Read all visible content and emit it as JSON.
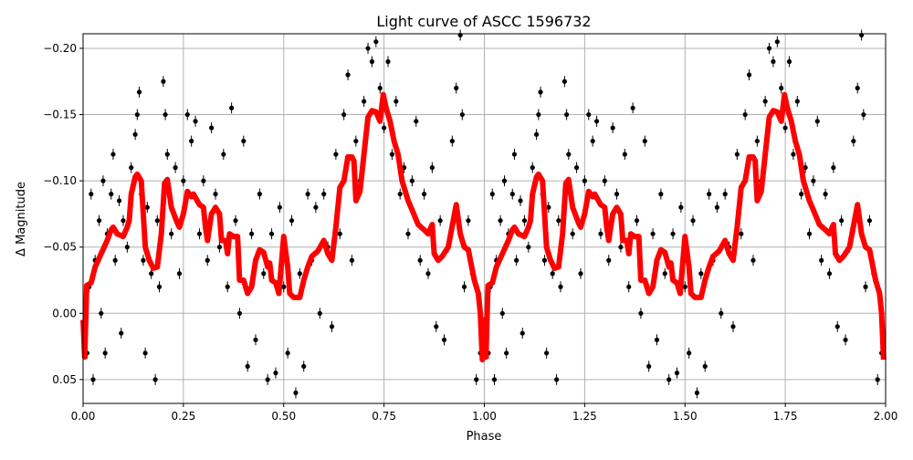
{
  "chart_data": {
    "type": "scatter",
    "title": "Light curve of ASCC 1596732",
    "xlabel": "Phase",
    "ylabel": "Δ Magnitude",
    "xlim": [
      0,
      2
    ],
    "ylim": [
      0.068,
      -0.211
    ],
    "y_inverted": true,
    "grid": true,
    "x_ticks": [
      "0.00",
      "0.25",
      "0.50",
      "0.75",
      "1.00",
      "1.25",
      "1.50",
      "1.75",
      "2.00"
    ],
    "y_ticks": [
      "−0.20",
      "−0.15",
      "−0.10",
      "−0.05",
      "0.00",
      "0.05"
    ],
    "colors": {
      "observations": "#000000",
      "model": "#ff0000",
      "grid": "#b0b0b0"
    },
    "period_folded": true,
    "observations": [
      [
        0.01,
        0.03
      ],
      [
        0.015,
        -0.02
      ],
      [
        0.02,
        -0.09
      ],
      [
        0.025,
        0.05
      ],
      [
        0.03,
        -0.04
      ],
      [
        0.04,
        -0.07
      ],
      [
        0.045,
        0.0
      ],
      [
        0.05,
        -0.1
      ],
      [
        0.055,
        0.03
      ],
      [
        0.06,
        -0.06
      ],
      [
        0.07,
        -0.09
      ],
      [
        0.075,
        -0.12
      ],
      [
        0.08,
        -0.04
      ],
      [
        0.09,
        -0.085
      ],
      [
        0.095,
        0.015
      ],
      [
        0.1,
        -0.07
      ],
      [
        0.11,
        -0.05
      ],
      [
        0.12,
        -0.11
      ],
      [
        0.13,
        -0.135
      ],
      [
        0.135,
        -0.15
      ],
      [
        0.14,
        -0.167
      ],
      [
        0.145,
        -0.09
      ],
      [
        0.15,
        -0.04
      ],
      [
        0.155,
        0.03
      ],
      [
        0.16,
        -0.08
      ],
      [
        0.17,
        -0.03
      ],
      [
        0.18,
        0.05
      ],
      [
        0.185,
        -0.07
      ],
      [
        0.19,
        -0.02
      ],
      [
        0.2,
        -0.175
      ],
      [
        0.205,
        -0.15
      ],
      [
        0.21,
        -0.12
      ],
      [
        0.22,
        -0.06
      ],
      [
        0.23,
        -0.11
      ],
      [
        0.24,
        -0.03
      ],
      [
        0.25,
        -0.1
      ],
      [
        0.26,
        -0.15
      ],
      [
        0.27,
        -0.13
      ],
      [
        0.28,
        -0.145
      ],
      [
        0.29,
        -0.06
      ],
      [
        0.3,
        -0.1
      ],
      [
        0.31,
        -0.04
      ],
      [
        0.32,
        -0.14
      ],
      [
        0.33,
        -0.09
      ],
      [
        0.34,
        -0.05
      ],
      [
        0.35,
        -0.12
      ],
      [
        0.36,
        -0.02
      ],
      [
        0.37,
        -0.155
      ],
      [
        0.38,
        -0.07
      ],
      [
        0.39,
        0.0
      ],
      [
        0.4,
        -0.13
      ],
      [
        0.41,
        0.04
      ],
      [
        0.42,
        -0.06
      ],
      [
        0.43,
        0.02
      ],
      [
        0.44,
        -0.09
      ],
      [
        0.45,
        -0.03
      ],
      [
        0.46,
        0.05
      ],
      [
        0.47,
        -0.06
      ],
      [
        0.48,
        0.045
      ],
      [
        0.49,
        -0.08
      ],
      [
        0.5,
        -0.02
      ],
      [
        0.51,
        0.03
      ],
      [
        0.52,
        -0.07
      ],
      [
        0.53,
        0.06
      ],
      [
        0.54,
        -0.03
      ],
      [
        0.55,
        0.04
      ],
      [
        0.56,
        -0.09
      ],
      [
        0.57,
        -0.04
      ],
      [
        0.58,
        -0.08
      ],
      [
        0.59,
        0.0
      ],
      [
        0.6,
        -0.09
      ],
      [
        0.61,
        -0.05
      ],
      [
        0.62,
        0.01
      ],
      [
        0.63,
        -0.12
      ],
      [
        0.64,
        -0.06
      ],
      [
        0.65,
        -0.15
      ],
      [
        0.66,
        -0.18
      ],
      [
        0.67,
        -0.04
      ],
      [
        0.68,
        -0.13
      ],
      [
        0.69,
        -0.1
      ],
      [
        0.7,
        -0.16
      ],
      [
        0.71,
        -0.2
      ],
      [
        0.72,
        -0.19
      ],
      [
        0.73,
        -0.205
      ],
      [
        0.74,
        -0.17
      ],
      [
        0.75,
        -0.14
      ],
      [
        0.76,
        -0.19
      ],
      [
        0.77,
        -0.12
      ],
      [
        0.78,
        -0.16
      ],
      [
        0.79,
        -0.09
      ],
      [
        0.8,
        -0.11
      ],
      [
        0.81,
        -0.06
      ],
      [
        0.82,
        -0.1
      ],
      [
        0.83,
        -0.145
      ],
      [
        0.84,
        -0.04
      ],
      [
        0.85,
        -0.09
      ],
      [
        0.86,
        -0.03
      ],
      [
        0.87,
        -0.11
      ],
      [
        0.88,
        0.01
      ],
      [
        0.89,
        -0.07
      ],
      [
        0.9,
        0.02
      ],
      [
        0.91,
        -0.05
      ],
      [
        0.92,
        -0.13
      ],
      [
        0.93,
        -0.17
      ],
      [
        0.94,
        -0.21
      ],
      [
        0.945,
        -0.15
      ],
      [
        0.95,
        -0.02
      ],
      [
        0.96,
        -0.07
      ],
      [
        0.97,
        -0.03
      ],
      [
        0.98,
        0.05
      ],
      [
        0.99,
        0.03
      ]
    ],
    "model": [
      [
        0.0,
        0.005
      ],
      [
        0.004,
        0.033
      ],
      [
        0.009,
        -0.021
      ],
      [
        0.02,
        -0.023
      ],
      [
        0.03,
        -0.035
      ],
      [
        0.045,
        -0.045
      ],
      [
        0.06,
        -0.055
      ],
      [
        0.07,
        -0.063
      ],
      [
        0.075,
        -0.065
      ],
      [
        0.085,
        -0.06
      ],
      [
        0.1,
        -0.058
      ],
      [
        0.11,
        -0.065
      ],
      [
        0.115,
        -0.07
      ],
      [
        0.12,
        -0.09
      ],
      [
        0.13,
        -0.103
      ],
      [
        0.135,
        -0.105
      ],
      [
        0.145,
        -0.1
      ],
      [
        0.155,
        -0.05
      ],
      [
        0.165,
        -0.04
      ],
      [
        0.175,
        -0.034
      ],
      [
        0.185,
        -0.035
      ],
      [
        0.195,
        -0.06
      ],
      [
        0.203,
        -0.098
      ],
      [
        0.21,
        -0.101
      ],
      [
        0.22,
        -0.08
      ],
      [
        0.235,
        -0.068
      ],
      [
        0.24,
        -0.065
      ],
      [
        0.25,
        -0.075
      ],
      [
        0.26,
        -0.092
      ],
      [
        0.27,
        -0.088
      ],
      [
        0.275,
        -0.09
      ],
      [
        0.29,
        -0.082
      ],
      [
        0.3,
        -0.08
      ],
      [
        0.305,
        -0.065
      ],
      [
        0.31,
        -0.055
      ],
      [
        0.32,
        -0.075
      ],
      [
        0.33,
        -0.08
      ],
      [
        0.34,
        -0.075
      ],
      [
        0.345,
        -0.055
      ],
      [
        0.355,
        -0.055
      ],
      [
        0.36,
        -0.045
      ],
      [
        0.365,
        -0.06
      ],
      [
        0.375,
        -0.058
      ],
      [
        0.385,
        -0.058
      ],
      [
        0.39,
        -0.025
      ],
      [
        0.4,
        -0.025
      ],
      [
        0.41,
        -0.015
      ],
      [
        0.42,
        -0.02
      ],
      [
        0.43,
        -0.04
      ],
      [
        0.44,
        -0.048
      ],
      [
        0.45,
        -0.046
      ],
      [
        0.46,
        -0.035
      ],
      [
        0.465,
        -0.038
      ],
      [
        0.47,
        -0.025
      ],
      [
        0.48,
        -0.023
      ],
      [
        0.488,
        -0.015
      ],
      [
        0.5,
        -0.058
      ],
      [
        0.51,
        -0.035
      ],
      [
        0.515,
        -0.015
      ],
      [
        0.525,
        -0.012
      ],
      [
        0.54,
        -0.012
      ],
      [
        0.55,
        -0.025
      ],
      [
        0.56,
        -0.035
      ],
      [
        0.57,
        -0.043
      ],
      [
        0.585,
        -0.047
      ],
      [
        0.6,
        -0.055
      ],
      [
        0.61,
        -0.045
      ],
      [
        0.62,
        -0.04
      ],
      [
        0.63,
        -0.065
      ],
      [
        0.64,
        -0.095
      ],
      [
        0.65,
        -0.1
      ],
      [
        0.66,
        -0.118
      ],
      [
        0.67,
        -0.118
      ],
      [
        0.675,
        -0.115
      ],
      [
        0.68,
        -0.085
      ],
      [
        0.69,
        -0.092
      ],
      [
        0.7,
        -0.12
      ],
      [
        0.71,
        -0.148
      ],
      [
        0.72,
        -0.153
      ],
      [
        0.73,
        -0.152
      ],
      [
        0.74,
        -0.145
      ],
      [
        0.748,
        -0.165
      ],
      [
        0.755,
        -0.155
      ],
      [
        0.765,
        -0.145
      ],
      [
        0.775,
        -0.13
      ],
      [
        0.785,
        -0.12
      ],
      [
        0.795,
        -0.1
      ],
      [
        0.81,
        -0.085
      ],
      [
        0.82,
        -0.078
      ],
      [
        0.835,
        -0.067
      ],
      [
        0.85,
        -0.063
      ],
      [
        0.86,
        -0.06
      ],
      [
        0.87,
        -0.067
      ],
      [
        0.875,
        -0.045
      ],
      [
        0.885,
        -0.04
      ],
      [
        0.895,
        -0.043
      ],
      [
        0.91,
        -0.05
      ],
      [
        0.93,
        -0.082
      ],
      [
        0.94,
        -0.06
      ],
      [
        0.95,
        -0.05
      ],
      [
        0.96,
        -0.048
      ],
      [
        0.975,
        -0.025
      ],
      [
        0.985,
        -0.015
      ],
      [
        0.99,
        0.0
      ],
      [
        0.995,
        0.035
      ]
    ]
  }
}
